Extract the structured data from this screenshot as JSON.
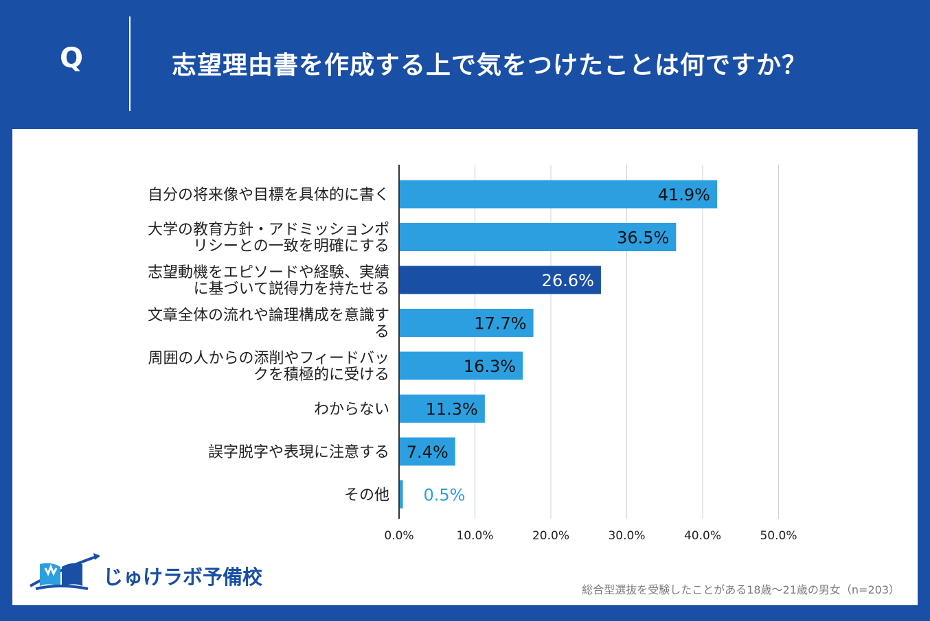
{
  "header": {
    "q_mark": "Q",
    "question": "志望理由書を作成する上で気をつけたことは何ですか？"
  },
  "colors": {
    "background": "#1a4fa6",
    "bar": "#2b9fe0",
    "bar_highlight": "#1a4fa6",
    "small_value_label": "#2b9fe0"
  },
  "chart_data": {
    "type": "bar",
    "orientation": "horizontal",
    "categories": [
      [
        "自分の将来像や目標を具体的に書く"
      ],
      [
        "大学の教育方針・アドミッションポ",
        "リシーとの一致を明確にする"
      ],
      [
        "志望動機をエピソードや経験、実績",
        "に基づいて説得力を持たせる"
      ],
      [
        "文章全体の流れや論理構成を意識す",
        "る"
      ],
      [
        "周囲の人からの添削やフィードバッ",
        "クを積極的に受ける"
      ],
      [
        "わからない"
      ],
      [
        "誤字脱字や表現に注意する"
      ],
      [
        "その他"
      ]
    ],
    "values": [
      41.9,
      36.5,
      26.6,
      17.7,
      16.3,
      11.3,
      7.4,
      0.5
    ],
    "value_labels": [
      "41.9%",
      "36.5%",
      "26.6%",
      "17.7%",
      "16.3%",
      "11.3%",
      "7.4%",
      "0.5%"
    ],
    "highlight_index": 2,
    "xlim": [
      0,
      50
    ],
    "xticks": [
      "0.0%",
      "10.0%",
      "20.0%",
      "30.0%",
      "40.0%",
      "50.0%"
    ],
    "grid": true
  },
  "logo": {
    "text": "じゅけラボ予備校",
    "icon": "book-icon"
  },
  "footnote": "総合型選抜を受験したことがある18歳～21歳の男女（n=203）"
}
